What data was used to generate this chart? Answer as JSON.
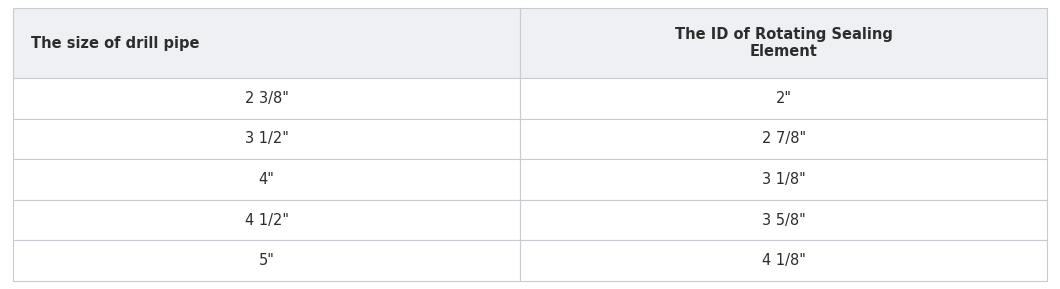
{
  "col1_header": "The size of drill pipe",
  "col2_header": "The ID of Rotating Sealing\nElement",
  "rows": [
    [
      "2 3/8\"",
      "2\""
    ],
    [
      "3 1/2\"",
      "2 7/8\""
    ],
    [
      "4\"",
      "3 1/8\""
    ],
    [
      "4 1/2\"",
      "3 5/8\""
    ],
    [
      "5\"",
      "4 1/8\""
    ]
  ],
  "header_bg": "#eef0f3",
  "row_bg": "#ffffff",
  "border_color": "#c8ccd2",
  "header_font_size": 10.5,
  "cell_font_size": 10.5,
  "text_color": "#2d2d2d",
  "fig_bg": "#ffffff",
  "col_split": 0.4906
}
